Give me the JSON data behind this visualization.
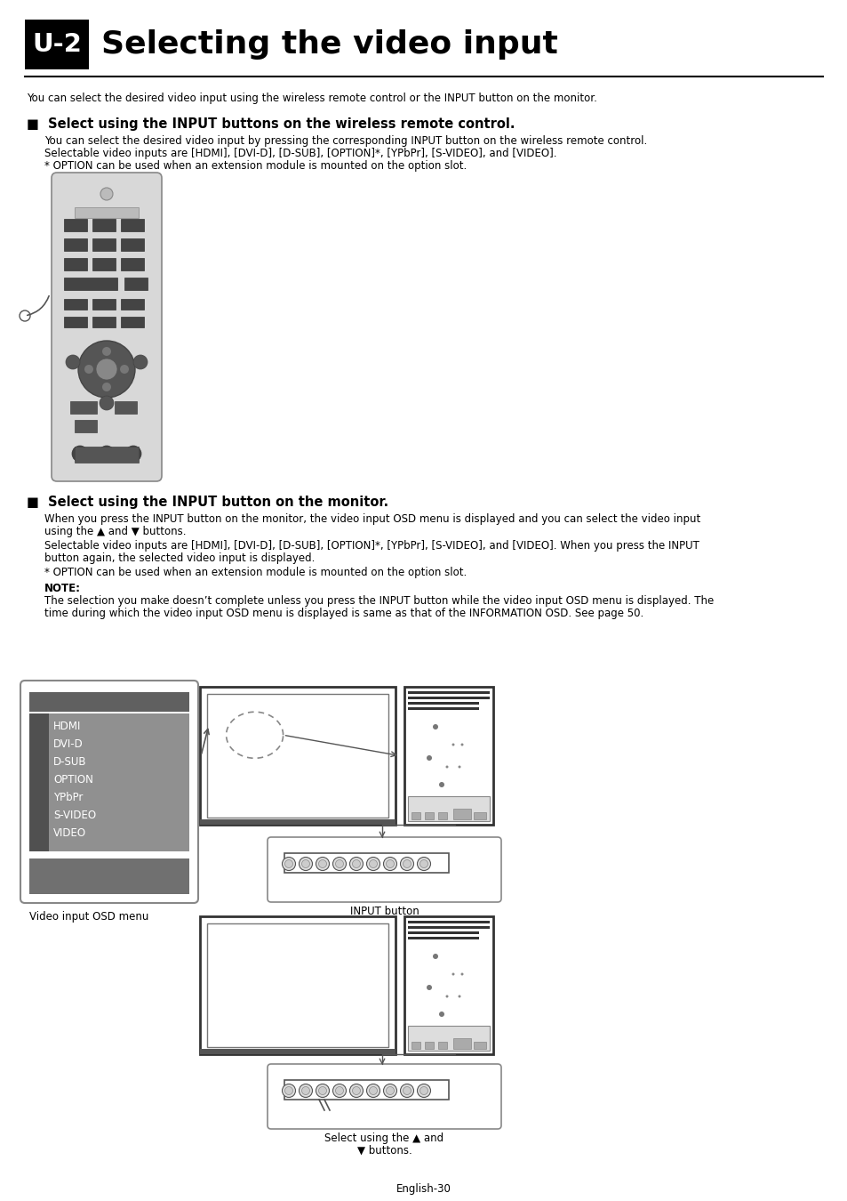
{
  "title_box": "U-2",
  "title_text": "Selecting the video input",
  "intro_text": "You can select the desired video input using the wireless remote control or the INPUT button on the monitor.",
  "section1_heading": "■  Select using the INPUT buttons on the wireless remote control.",
  "section1_body1": "You can select the desired video input by pressing the corresponding INPUT button on the wireless remote control.",
  "section1_body2": "Selectable video inputs are [HDMI], [DVI-D], [D-SUB], [OPTION]*, [YPbPr], [S-VIDEO], and [VIDEO].",
  "section1_body3": "* OPTION can be used when an extension module is mounted on the option slot.",
  "section2_heading": "■  Select using the INPUT button on the monitor.",
  "section2_body1a": "When you press the INPUT button on the monitor, the video input OSD menu is displayed and you can select the video input",
  "section2_body1b": "using the ▲ and ▼ buttons.",
  "section2_body2a": "Selectable video inputs are [HDMI], [DVI-D], [D-SUB], [OPTION]*, [YPbPr], [S-VIDEO], and [VIDEO]. When you press the INPUT",
  "section2_body2b": "button again, the selected video input is displayed.",
  "section2_body3": "* OPTION can be used when an extension module is mounted on the option slot.",
  "note_label": "NOTE:",
  "note_body1": "The selection you make doesn’t complete unless you press the INPUT button while the video input OSD menu is displayed. The",
  "note_body2": "time during which the video input OSD menu is displayed is same as that of the INFORMATION OSD. See page 50.",
  "osd_items": [
    "HDMI",
    "DVI-D",
    "D-SUB",
    "OPTION",
    "YPbPr",
    "S-VIDEO",
    "VIDEO"
  ],
  "osd_label": "Video input OSD menu",
  "input_button_label": "INPUT button",
  "select_label1": "Select using the ▲ and",
  "select_label2": "▼ buttons.",
  "footer": "English-30",
  "bg_color": "#ffffff",
  "title_box_color": "#000000",
  "title_box_text_color": "#ffffff",
  "heading_color": "#000000",
  "body_color": "#000000",
  "line_color": "#000000"
}
